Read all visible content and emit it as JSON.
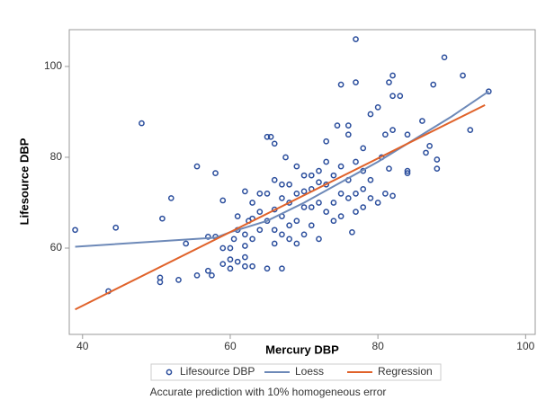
{
  "chart_data": {
    "type": "scatter",
    "x_label": "Mercury DBP",
    "y_label": "Lifesource DBP",
    "note": "Accurate prediction with 10% homogeneous error",
    "xlim": [
      38.2,
      101.3
    ],
    "ylim": [
      41,
      108.1
    ],
    "xticks": [
      40,
      60,
      80,
      100
    ],
    "yticks": [
      60,
      80,
      100
    ],
    "series": [
      {
        "name": "Lifesource DBP",
        "kind": "marker",
        "color": "#2a4d9c",
        "x": [
          39,
          43.5,
          44.5,
          48,
          50.5,
          50.5,
          50.8,
          52,
          53,
          54,
          55.5,
          55.5,
          57,
          57.5,
          58,
          58,
          57,
          59,
          77,
          89,
          91.5,
          92.5,
          95,
          88,
          88,
          87,
          82,
          81.5,
          83,
          82,
          75,
          77,
          79,
          80,
          81,
          82,
          84,
          86,
          87.5,
          86.5,
          84,
          84,
          80.5,
          81.5,
          78,
          76,
          74.5,
          76,
          76.5,
          73,
          65,
          65.5,
          66,
          67.5,
          65,
          67,
          62,
          63,
          61,
          60,
          59,
          60,
          62,
          62,
          60,
          59,
          60.5,
          61,
          62,
          63,
          62.5,
          61,
          63,
          64,
          62,
          64,
          65,
          66,
          66,
          67,
          67,
          68,
          68,
          69,
          69,
          70,
          70,
          71,
          71,
          72,
          72,
          73,
          73,
          74,
          74,
          75,
          75,
          76,
          77,
          77,
          78,
          78,
          79,
          79,
          80,
          81,
          82,
          78,
          77,
          70,
          69,
          66,
          65,
          67,
          68,
          71,
          72,
          69,
          66,
          64,
          70,
          73,
          75,
          71,
          68,
          74,
          63,
          67,
          72,
          76
        ],
        "values": [
          64,
          50.5,
          64.5,
          87.5,
          52.5,
          53.5,
          66.5,
          71,
          53,
          61,
          78,
          54,
          55,
          54,
          76.5,
          62.5,
          62.5,
          70.5,
          106,
          102,
          98,
          86,
          94.5,
          77.5,
          79.5,
          82.5,
          98,
          96.5,
          93.5,
          93.5,
          96,
          96.5,
          89.5,
          91,
          85,
          86,
          85,
          88,
          96,
          81,
          77,
          76.5,
          80,
          77.5,
          82,
          87,
          87,
          85,
          63.5,
          83.5,
          84.5,
          84.5,
          83,
          80,
          55.5,
          55.5,
          56,
          56,
          57,
          57.5,
          56.5,
          55.5,
          58,
          60.5,
          60,
          60,
          62,
          64,
          63,
          62,
          66,
          67,
          70,
          72,
          72.5,
          68,
          66,
          64,
          61,
          63,
          67,
          70,
          74,
          72,
          66,
          63,
          69,
          73,
          76,
          77,
          70,
          68,
          74,
          76,
          70,
          72,
          67,
          75,
          72,
          68,
          73,
          69,
          75,
          71,
          70,
          72,
          71.5,
          77,
          79,
          76,
          78,
          75,
          72,
          71,
          65,
          65,
          62,
          61,
          68.5,
          64,
          72.5,
          79,
          78,
          69,
          62,
          66,
          66.5,
          74,
          74.5,
          71
        ]
      },
      {
        "name": "Loess",
        "kind": "line",
        "color": "#6d89b8",
        "x": [
          39,
          58,
          60,
          65,
          70,
          75,
          80,
          85,
          90,
          95
        ],
        "values": [
          60.3,
          62.3,
          63.5,
          66,
          70,
          74.5,
          79,
          84,
          89,
          94.5
        ]
      },
      {
        "name": "Regression",
        "kind": "line",
        "color": "#e0622a",
        "x": [
          39,
          94.5
        ],
        "values": [
          46.5,
          91.5
        ]
      }
    ]
  }
}
